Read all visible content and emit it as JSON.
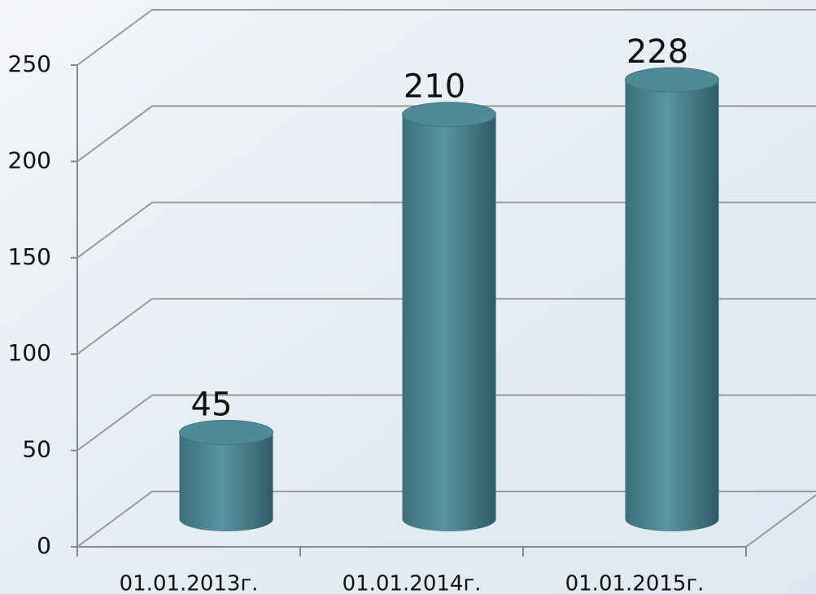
{
  "chart_data": {
    "type": "bar",
    "categories": [
      "01.01.2013г.",
      "01.01.2014г.",
      "01.01.2015г."
    ],
    "values": [
      45,
      210,
      228
    ],
    "color": "#4f8a97",
    "ylim": [
      0,
      250
    ],
    "yticks": [
      0,
      50,
      100,
      150,
      200,
      250
    ],
    "grid": true
  }
}
